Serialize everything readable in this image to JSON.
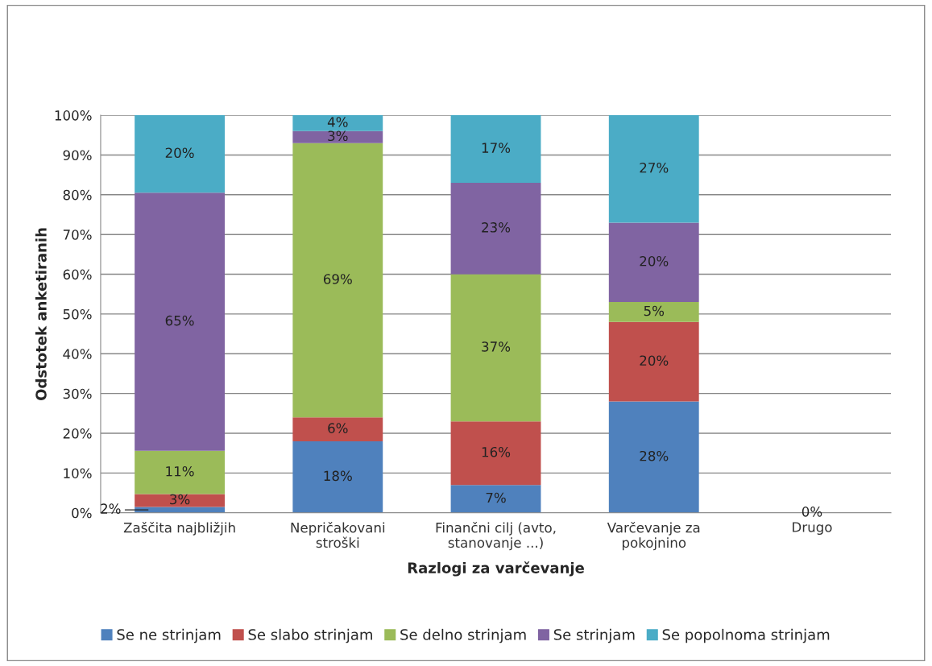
{
  "chart_data": {
    "type": "bar",
    "stacked": true,
    "xlabel": "Razlogi za varčevanje",
    "ylabel": "Odstotek anketiranih",
    "categories": [
      "Zaščita najbližjih",
      "Nepričakovani\nstroški",
      "Finančni cilj (avto,\nstanovanje ...)",
      "Varčevanje za\npokojnino",
      "Drugo"
    ],
    "series": [
      {
        "name": "Se ne strinjam",
        "color": "#4f81bd",
        "values": [
          1.5,
          18,
          7,
          28,
          0
        ],
        "value_labels": [
          "2%",
          "18%",
          "7%",
          "28%",
          "0%"
        ]
      },
      {
        "name": "Se slabo strinjam",
        "color": "#c0504d",
        "values": [
          3.2,
          6,
          16,
          20,
          0
        ],
        "value_labels": [
          "3%",
          "6%",
          "16%",
          "20%",
          null
        ]
      },
      {
        "name": "Se delno strinjam",
        "color": "#9bbb59",
        "values": [
          10.9,
          69,
          37,
          5,
          0
        ],
        "value_labels": [
          "11%",
          "69%",
          "37%",
          "5%",
          null
        ]
      },
      {
        "name": "Se strinjam",
        "color": "#8064a2",
        "values": [
          64.9,
          3,
          23,
          20,
          0
        ],
        "value_labels": [
          "65%",
          "3%",
          "23%",
          "20%",
          null
        ]
      },
      {
        "name": "Se popolnoma strinjam",
        "color": "#4bacc6",
        "values": [
          19.5,
          4,
          17,
          27,
          0
        ],
        "value_labels": [
          "20%",
          "4%",
          "17%",
          "27%",
          null
        ]
      }
    ],
    "ylim": [
      0,
      100
    ],
    "yticks": [
      {
        "value": 0,
        "label": "0%"
      },
      {
        "value": 10,
        "label": "10%"
      },
      {
        "value": 20,
        "label": "20%"
      },
      {
        "value": 30,
        "label": "30%"
      },
      {
        "value": 40,
        "label": "40%"
      },
      {
        "value": 50,
        "label": "50%"
      },
      {
        "value": 60,
        "label": "60%"
      },
      {
        "value": 70,
        "label": "70%"
      },
      {
        "value": 80,
        "label": "80%"
      },
      {
        "value": 90,
        "label": "90%"
      },
      {
        "value": 100,
        "label": "100%"
      }
    ],
    "grid": "y",
    "legend": "bottom"
  }
}
